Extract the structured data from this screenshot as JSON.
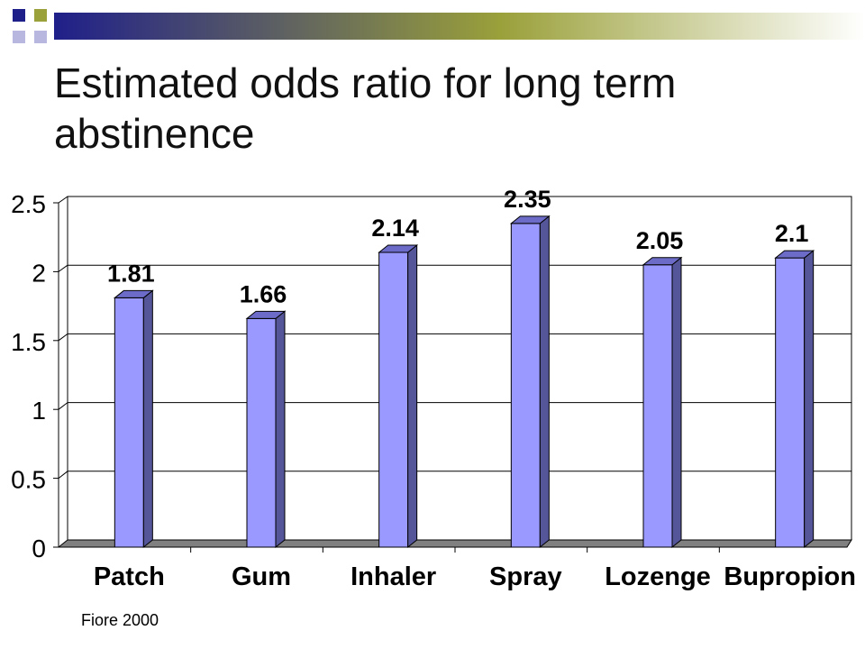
{
  "slide": {
    "title": "Estimated odds ratio for long term abstinence",
    "source": "Fiore 2000"
  },
  "colors": {
    "bar_front": "#9999ff",
    "bar_side": "#55559a",
    "bar_top": "#6c6cc8",
    "floor": "#808080",
    "header_navy": "#1f1f8a",
    "header_olive": "#9aa03a",
    "header_lavender": "#b7b7e0"
  },
  "chart_data": {
    "type": "bar",
    "categories": [
      "Patch",
      "Gum",
      "Inhaler",
      "Spray",
      "Lozenge",
      "Bupropion"
    ],
    "values": [
      1.81,
      1.66,
      2.14,
      2.35,
      2.05,
      2.1
    ],
    "value_labels": [
      "1.81",
      "1.66",
      "2.14",
      "2.35",
      "2.05",
      "2.1"
    ],
    "title": "",
    "xlabel": "",
    "ylabel": "",
    "ylim": [
      0,
      2.5
    ],
    "yticks": [
      0,
      0.5,
      1,
      1.5,
      2,
      2.5
    ],
    "ytick_labels": [
      "0",
      "0.5",
      "1",
      "1.5",
      "2",
      "2.5"
    ],
    "grid": true,
    "three_d": true,
    "legend": "none"
  }
}
